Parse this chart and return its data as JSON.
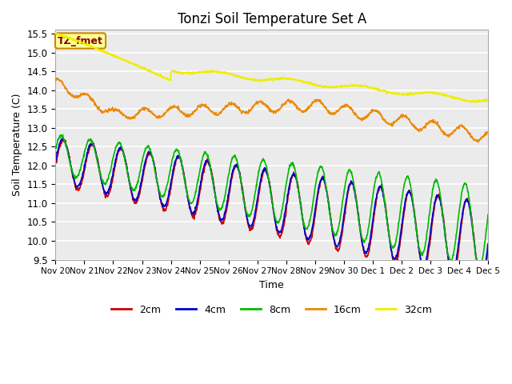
{
  "title": "Tonzi Soil Temperature Set A",
  "xlabel": "Time",
  "ylabel": "Soil Temperature (C)",
  "legend_label": "TZ_fmet",
  "ylim": [
    9.5,
    15.6
  ],
  "yticks": [
    9.5,
    10.0,
    10.5,
    11.0,
    11.5,
    12.0,
    12.5,
    13.0,
    13.5,
    14.0,
    14.5,
    15.0,
    15.5
  ],
  "xtick_labels": [
    "Nov 20",
    "Nov 21",
    "Nov 22",
    "Nov 23",
    "Nov 24",
    "Nov 25",
    "Nov 26",
    "Nov 27",
    "Nov 28",
    "Nov 29",
    "Nov 30",
    "Dec 1",
    "Dec 2",
    "Dec 3",
    "Dec 4",
    "Dec 5"
  ],
  "series_colors": {
    "2cm": "#cc0000",
    "4cm": "#0000cc",
    "8cm": "#00bb00",
    "16cm": "#ee8800",
    "32cm": "#eeee00"
  },
  "linewidth": 1.2,
  "plot_bg_color": "#ebebeb",
  "legend_box_facecolor": "#ffff99",
  "legend_box_edgecolor": "#cc8800",
  "legend_text_color": "#880000",
  "num_days": 15,
  "pts_per_day": 96
}
